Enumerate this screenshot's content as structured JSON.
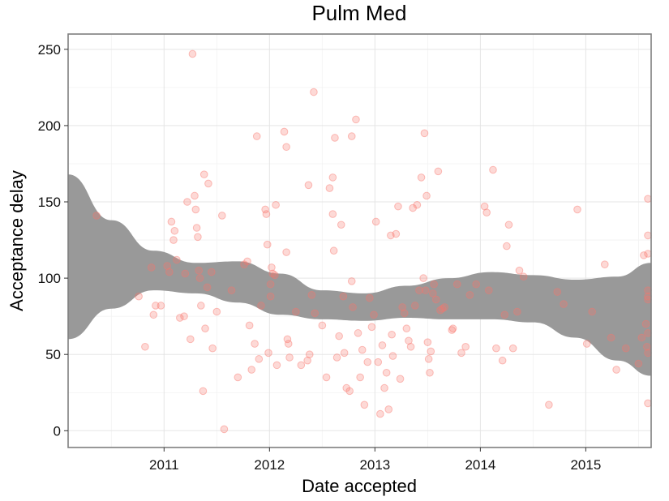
{
  "chart_data": {
    "type": "scatter",
    "title": "Pulm Med",
    "xlabel": "Date accepted",
    "ylabel": "Acceptance delay",
    "xlim": [
      2010.09,
      2015.62
    ],
    "ylim": [
      -11,
      260
    ],
    "x_ticks": [
      2011,
      2012,
      2013,
      2014,
      2015
    ],
    "x_tick_labels": [
      "2011",
      "2012",
      "2013",
      "2014",
      "2015"
    ],
    "y_ticks": [
      0,
      50,
      100,
      150,
      200,
      250
    ],
    "y_tick_labels": [
      "0",
      "50",
      "100",
      "150",
      "200",
      "250"
    ],
    "grid": true,
    "point_color": "#f8766d",
    "band_color": "#999999",
    "points": [
      [
        2010.36,
        141
      ],
      [
        2010.82,
        55
      ],
      [
        2010.88,
        107
      ],
      [
        2010.9,
        76
      ],
      [
        2010.92,
        82
      ],
      [
        2010.97,
        82
      ],
      [
        2011.03,
        108
      ],
      [
        2011.05,
        104
      ],
      [
        2010.76,
        88
      ],
      [
        2011.07,
        137
      ],
      [
        2011.09,
        125
      ],
      [
        2011.1,
        131
      ],
      [
        2011.12,
        112
      ],
      [
        2011.15,
        74
      ],
      [
        2011.19,
        75
      ],
      [
        2011.2,
        103
      ],
      [
        2011.22,
        150
      ],
      [
        2011.25,
        60
      ],
      [
        2011.27,
        247
      ],
      [
        2011.29,
        154
      ],
      [
        2011.3,
        145
      ],
      [
        2011.31,
        133
      ],
      [
        2011.32,
        127
      ],
      [
        2011.33,
        105
      ],
      [
        2011.34,
        100
      ],
      [
        2011.35,
        82
      ],
      [
        2011.37,
        26
      ],
      [
        2011.38,
        168
      ],
      [
        2011.39,
        67
      ],
      [
        2011.41,
        94
      ],
      [
        2011.42,
        162
      ],
      [
        2011.45,
        104
      ],
      [
        2011.46,
        54
      ],
      [
        2011.5,
        78
      ],
      [
        2011.55,
        141
      ],
      [
        2011.57,
        1
      ],
      [
        2011.64,
        92
      ],
      [
        2011.7,
        35
      ],
      [
        2011.76,
        109
      ],
      [
        2011.79,
        111
      ],
      [
        2011.81,
        69
      ],
      [
        2011.83,
        40
      ],
      [
        2011.86,
        57
      ],
      [
        2011.88,
        193
      ],
      [
        2011.9,
        47
      ],
      [
        2011.92,
        82
      ],
      [
        2011.96,
        145
      ],
      [
        2011.97,
        142
      ],
      [
        2011.98,
        122
      ],
      [
        2011.99,
        51
      ],
      [
        2012.01,
        96
      ],
      [
        2012.01,
        88
      ],
      [
        2012.02,
        107
      ],
      [
        2012.03,
        103
      ],
      [
        2012.05,
        102
      ],
      [
        2012.06,
        148
      ],
      [
        2012.07,
        43
      ],
      [
        2012.14,
        196
      ],
      [
        2012.16,
        186
      ],
      [
        2012.16,
        117
      ],
      [
        2012.17,
        60
      ],
      [
        2012.18,
        57
      ],
      [
        2012.19,
        48
      ],
      [
        2012.25,
        78
      ],
      [
        2012.3,
        43
      ],
      [
        2012.36,
        46
      ],
      [
        2012.37,
        161
      ],
      [
        2012.38,
        50
      ],
      [
        2012.4,
        89
      ],
      [
        2012.42,
        222
      ],
      [
        2012.43,
        77
      ],
      [
        2012.5,
        69
      ],
      [
        2012.54,
        35
      ],
      [
        2012.57,
        159
      ],
      [
        2012.6,
        166
      ],
      [
        2012.6,
        142
      ],
      [
        2012.61,
        118
      ],
      [
        2012.62,
        192
      ],
      [
        2012.64,
        48
      ],
      [
        2012.66,
        62
      ],
      [
        2012.68,
        135
      ],
      [
        2012.7,
        88
      ],
      [
        2012.71,
        51
      ],
      [
        2012.73,
        28
      ],
      [
        2012.76,
        26
      ],
      [
        2012.78,
        193
      ],
      [
        2012.78,
        98
      ],
      [
        2012.79,
        81
      ],
      [
        2012.82,
        204
      ],
      [
        2012.84,
        64
      ],
      [
        2012.86,
        35
      ],
      [
        2012.88,
        53
      ],
      [
        2012.9,
        17
      ],
      [
        2012.93,
        45
      ],
      [
        2012.95,
        87
      ],
      [
        2012.97,
        68
      ],
      [
        2012.99,
        76
      ],
      [
        2013.01,
        137
      ],
      [
        2013.03,
        45
      ],
      [
        2013.05,
        11
      ],
      [
        2013.07,
        56
      ],
      [
        2013.09,
        28
      ],
      [
        2013.11,
        38
      ],
      [
        2013.13,
        14
      ],
      [
        2013.15,
        128
      ],
      [
        2013.16,
        63
      ],
      [
        2013.17,
        49
      ],
      [
        2013.2,
        129
      ],
      [
        2013.22,
        147
      ],
      [
        2013.24,
        34
      ],
      [
        2013.26,
        81
      ],
      [
        2013.28,
        77
      ],
      [
        2013.3,
        67
      ],
      [
        2013.32,
        59
      ],
      [
        2013.34,
        55
      ],
      [
        2013.36,
        146
      ],
      [
        2013.38,
        82
      ],
      [
        2013.4,
        148
      ],
      [
        2013.42,
        92
      ],
      [
        2013.44,
        166
      ],
      [
        2013.46,
        100
      ],
      [
        2013.47,
        195
      ],
      [
        2013.48,
        92
      ],
      [
        2013.49,
        154
      ],
      [
        2013.5,
        58
      ],
      [
        2013.51,
        47
      ],
      [
        2013.52,
        38
      ],
      [
        2013.53,
        52
      ],
      [
        2013.55,
        90
      ],
      [
        2013.56,
        96
      ],
      [
        2013.58,
        86
      ],
      [
        2013.6,
        170
      ],
      [
        2013.62,
        79
      ],
      [
        2013.64,
        80
      ],
      [
        2013.66,
        81
      ],
      [
        2013.73,
        66
      ],
      [
        2013.74,
        67
      ],
      [
        2013.78,
        96
      ],
      [
        2013.82,
        51
      ],
      [
        2013.86,
        55
      ],
      [
        2013.9,
        89
      ],
      [
        2013.96,
        96
      ],
      [
        2014.04,
        147
      ],
      [
        2014.06,
        143
      ],
      [
        2014.08,
        92
      ],
      [
        2014.12,
        171
      ],
      [
        2014.15,
        54
      ],
      [
        2014.21,
        46
      ],
      [
        2014.23,
        76
      ],
      [
        2014.25,
        121
      ],
      [
        2014.27,
        135
      ],
      [
        2014.31,
        54
      ],
      [
        2014.35,
        78
      ],
      [
        2014.37,
        105
      ],
      [
        2014.41,
        101
      ],
      [
        2014.65,
        17
      ],
      [
        2014.73,
        91
      ],
      [
        2014.79,
        83
      ],
      [
        2014.92,
        145
      ],
      [
        2015.01,
        57
      ],
      [
        2015.06,
        78
      ],
      [
        2015.18,
        109
      ],
      [
        2015.24,
        61
      ],
      [
        2015.29,
        40
      ],
      [
        2015.38,
        54
      ],
      [
        2015.5,
        44
      ],
      [
        2015.53,
        61
      ],
      [
        2015.55,
        115
      ],
      [
        2015.57,
        70
      ],
      [
        2015.58,
        55
      ],
      [
        2015.6,
        116
      ],
      [
        2015.61,
        152
      ],
      [
        2015.62,
        86
      ],
      [
        2015.62,
        88
      ],
      [
        2015.72,
        64
      ],
      [
        2015.73,
        18
      ],
      [
        2015.75,
        92
      ],
      [
        2015.78,
        51
      ],
      [
        2016.07,
        128
      ]
    ],
    "band": [
      {
        "x": 2010.09,
        "lower": 60,
        "upper": 168
      },
      {
        "x": 2010.5,
        "lower": 80,
        "upper": 138
      },
      {
        "x": 2010.9,
        "lower": 92,
        "upper": 118
      },
      {
        "x": 2011.3,
        "lower": 90,
        "upper": 110
      },
      {
        "x": 2011.7,
        "lower": 84,
        "upper": 111
      },
      {
        "x": 2012.1,
        "lower": 76,
        "upper": 103
      },
      {
        "x": 2012.5,
        "lower": 73,
        "upper": 92
      },
      {
        "x": 2012.9,
        "lower": 72,
        "upper": 90
      },
      {
        "x": 2013.3,
        "lower": 74,
        "upper": 95
      },
      {
        "x": 2013.7,
        "lower": 73,
        "upper": 100
      },
      {
        "x": 2014.1,
        "lower": 73,
        "upper": 104
      },
      {
        "x": 2014.5,
        "lower": 71,
        "upper": 102
      },
      {
        "x": 2014.9,
        "lower": 61,
        "upper": 99
      },
      {
        "x": 2015.3,
        "lower": 46,
        "upper": 101
      },
      {
        "x": 2015.62,
        "lower": 36,
        "upper": 110
      }
    ]
  }
}
